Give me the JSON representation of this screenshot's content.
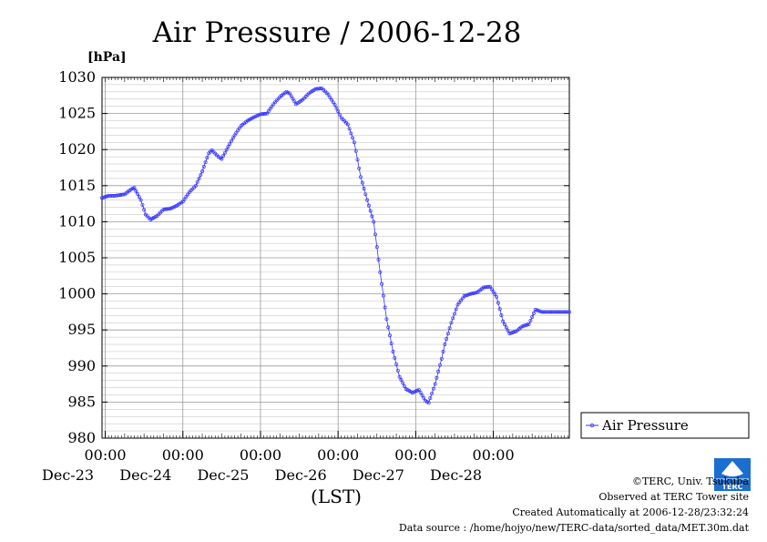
{
  "chart_data": {
    "type": "line",
    "title": "Air Pressure / 2006-12-28",
    "ylabel": "[hPa]",
    "xlabel": "(LST)",
    "ylim": [
      980,
      1030
    ],
    "yticks": [
      980,
      985,
      990,
      995,
      1000,
      1005,
      1010,
      1015,
      1020,
      1025,
      1030
    ],
    "xticks": [
      {
        "time": "00:00",
        "date": "Dec-23"
      },
      {
        "time": "00:00",
        "date": "Dec-24"
      },
      {
        "time": "00:00",
        "date": "Dec-25"
      },
      {
        "time": "00:00",
        "date": "Dec-26"
      },
      {
        "time": "00:00",
        "date": "Dec-27"
      },
      {
        "time": "00:00",
        "date": "Dec-28"
      }
    ],
    "xlim": [
      "2006-12-22 23:00",
      "2006-12-28 23:30"
    ],
    "grid": true,
    "legend_position": "right",
    "series": [
      {
        "name": "Air Pressure",
        "color": "#3333ff",
        "x": [
          "2006-12-22 23:00",
          "2006-12-23 01:00",
          "2006-12-23 03:00",
          "2006-12-23 06:00",
          "2006-12-23 08:00",
          "2006-12-23 09:00",
          "2006-12-23 11:00",
          "2006-12-23 12:30",
          "2006-12-23 14:00",
          "2006-12-23 16:00",
          "2006-12-23 18:00",
          "2006-12-23 20:00",
          "2006-12-23 22:00",
          "2006-12-24 00:00",
          "2006-12-24 02:00",
          "2006-12-24 04:00",
          "2006-12-24 06:00",
          "2006-12-24 08:00",
          "2006-12-24 09:00",
          "2006-12-24 11:00",
          "2006-12-24 12:00",
          "2006-12-24 14:00",
          "2006-12-24 16:00",
          "2006-12-24 18:00",
          "2006-12-24 20:00",
          "2006-12-24 22:00",
          "2006-12-25 00:00",
          "2006-12-25 02:00",
          "2006-12-25 04:00",
          "2006-12-25 06:00",
          "2006-12-25 08:00",
          "2006-12-25 09:00",
          "2006-12-25 11:00",
          "2006-12-25 13:00",
          "2006-12-25 15:00",
          "2006-12-25 17:00",
          "2006-12-25 19:00",
          "2006-12-25 21:00",
          "2006-12-25 23:00",
          "2006-12-26 01:00",
          "2006-12-26 03:00",
          "2006-12-26 05:00",
          "2006-12-26 07:00",
          "2006-12-26 09:00",
          "2006-12-26 11:00",
          "2006-12-26 13:00",
          "2006-12-26 15:00",
          "2006-12-26 17:00",
          "2006-12-26 19:00",
          "2006-12-26 21:00",
          "2006-12-26 23:00",
          "2006-12-27 01:00",
          "2006-12-27 03:00",
          "2006-12-27 04:00",
          "2006-12-27 06:00",
          "2006-12-27 08:00",
          "2006-12-27 09:00",
          "2006-12-27 11:00",
          "2006-12-27 13:00",
          "2006-12-27 15:00",
          "2006-12-27 17:00",
          "2006-12-27 19:00",
          "2006-12-27 21:00",
          "2006-12-27 23:00",
          "2006-12-28 01:00",
          "2006-12-28 03:00",
          "2006-12-28 05:00",
          "2006-12-28 07:00",
          "2006-12-28 09:00",
          "2006-12-28 11:00",
          "2006-12-28 13:00",
          "2006-12-28 15:00",
          "2006-12-28 17:00",
          "2006-12-28 19:00",
          "2006-12-28 21:00",
          "2006-12-28 23:00",
          "2006-12-28 23:30"
        ],
        "values": [
          1013.3,
          1013.6,
          1013.6,
          1013.8,
          1014.5,
          1014.7,
          1013.0,
          1011.0,
          1010.3,
          1010.8,
          1011.7,
          1011.8,
          1012.2,
          1012.8,
          1014.1,
          1015.0,
          1017.0,
          1019.5,
          1019.9,
          1019.0,
          1018.7,
          1020.4,
          1022.0,
          1023.3,
          1024.0,
          1024.5,
          1024.9,
          1025.0,
          1026.3,
          1027.3,
          1028.0,
          1027.8,
          1026.3,
          1026.9,
          1027.8,
          1028.4,
          1028.5,
          1027.6,
          1026.2,
          1024.4,
          1023.5,
          1021.0,
          1016.2,
          1013.0,
          1010.0,
          1003.0,
          996.5,
          992.0,
          988.5,
          986.8,
          986.3,
          986.7,
          985.2,
          984.9,
          987.5,
          991.0,
          993.0,
          996.0,
          998.5,
          999.7,
          1000.0,
          1000.2,
          1000.9,
          1001.0,
          999.6,
          996.2,
          994.5,
          994.8,
          995.5,
          995.8,
          997.8,
          997.5,
          997.5,
          997.5,
          997.5,
          997.5,
          997.5
        ]
      }
    ]
  },
  "legend": {
    "label": "Air Pressure"
  },
  "footer": {
    "copyright": "©TERC, Univ. Tsukuba",
    "observed": "Observed at TERC Tower site",
    "created": "Created Automatically at 2006-12-28/23:32:24",
    "source": "Data source : /home/hojyo/new/TERC-data/sorted_data/MET.30m.dat"
  },
  "logo": {
    "text": "TERC",
    "color": "#1a6fd0"
  }
}
